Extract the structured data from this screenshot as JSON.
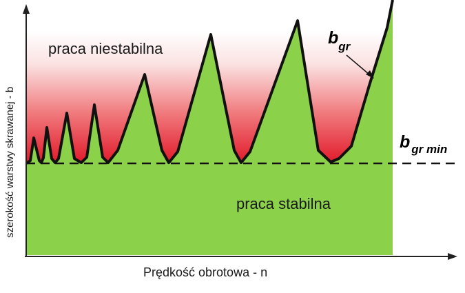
{
  "diagram": {
    "region_unstable_label": "praca niestabilna",
    "region_stable_label": "praca stabilna",
    "x_axis_label": "Prędkość obrotowa - n",
    "y_axis_label": "szerokość warstwy skrawanej - b",
    "curve_label": {
      "symbol": "b",
      "subscript": "gr"
    },
    "min_line_label": {
      "symbol": "b",
      "subscript": "gr min"
    },
    "colors": {
      "stable_fill": "#8cd14a",
      "unstable_top": "#ffffff",
      "unstable_bottom": "#e11a2a",
      "boundary": "#111111"
    }
  }
}
